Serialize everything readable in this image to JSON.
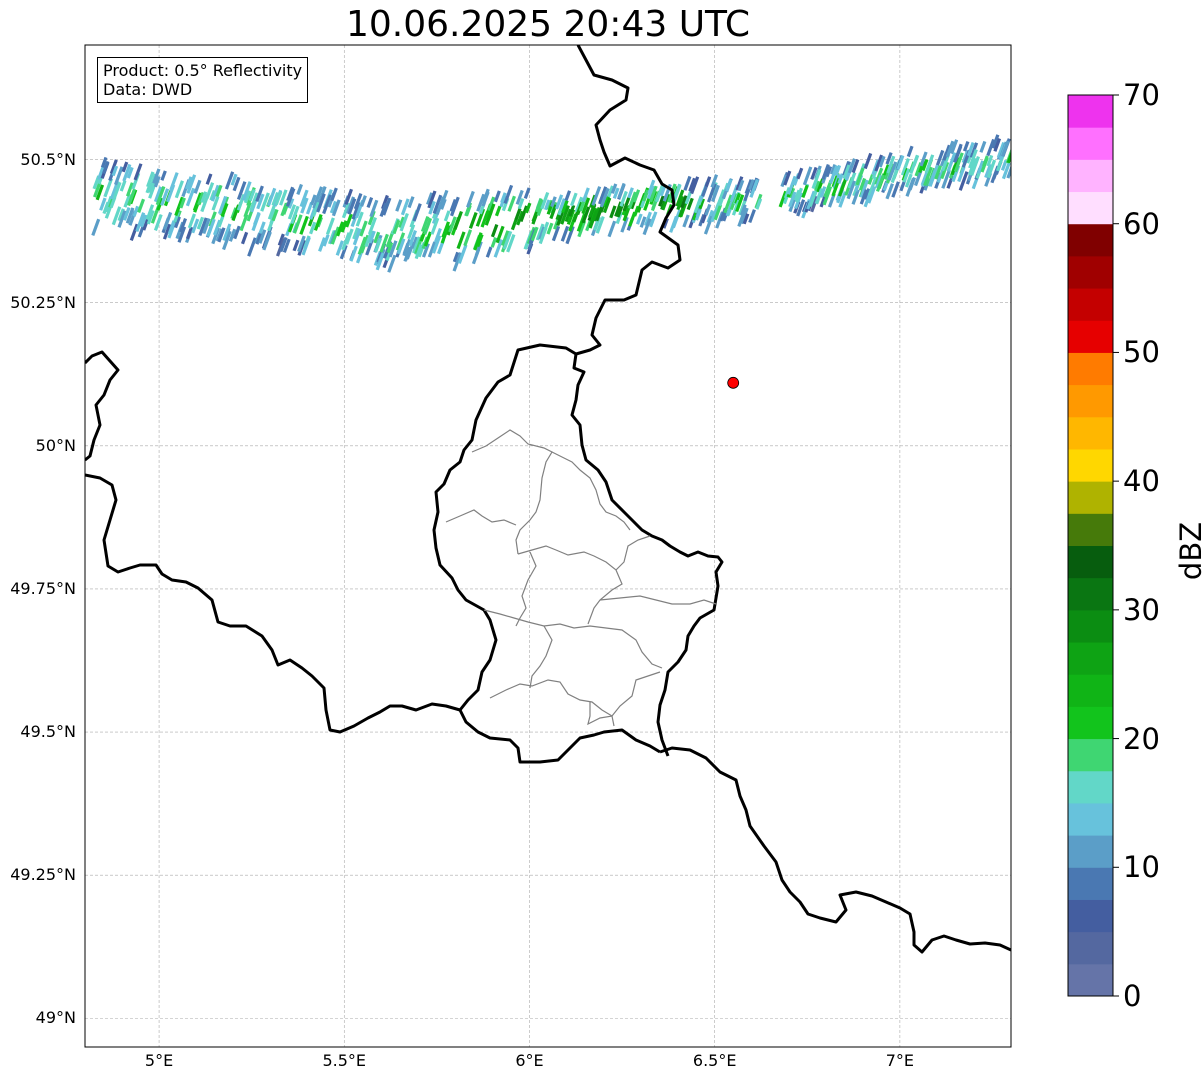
{
  "title": "10.06.2025 20:43 UTC",
  "info": {
    "product": "Product: 0.5° Reflectivity",
    "data_source": "Data: DWD"
  },
  "map": {
    "lat_range": [
      48.95,
      50.7
    ],
    "lon_range": [
      4.8,
      7.3
    ],
    "lat_ticks": [
      {
        "value": 49.0,
        "label": "49°N"
      },
      {
        "value": 49.25,
        "label": "49.25°N"
      },
      {
        "value": 49.5,
        "label": "49.5°N"
      },
      {
        "value": 49.75,
        "label": "49.75°N"
      },
      {
        "value": 50.0,
        "label": "50°N"
      },
      {
        "value": 50.25,
        "label": "50.25°N"
      },
      {
        "value": 50.5,
        "label": "50.5°N"
      }
    ],
    "lon_ticks": [
      {
        "value": 5.0,
        "label": "5°E"
      },
      {
        "value": 5.5,
        "label": "5.5°E"
      },
      {
        "value": 6.0,
        "label": "6°E"
      },
      {
        "value": 6.5,
        "label": "6.5°E"
      },
      {
        "value": 7.0,
        "label": "7°E"
      }
    ],
    "grid": true,
    "marker": {
      "lat": 50.11,
      "lon": 6.55,
      "color": "#ff0000"
    },
    "radar_band_centerline": [
      [
        4.82,
        50.44
      ],
      [
        5.0,
        50.42
      ],
      [
        5.2,
        50.41
      ],
      [
        5.4,
        50.39
      ],
      [
        5.6,
        50.37
      ],
      [
        5.8,
        50.375
      ],
      [
        6.0,
        50.39
      ],
      [
        6.2,
        50.41
      ],
      [
        6.4,
        50.42
      ],
      [
        6.6,
        50.425
      ],
      [
        6.8,
        50.45
      ],
      [
        7.0,
        50.475
      ],
      [
        7.3,
        50.5
      ]
    ]
  },
  "colorbar": {
    "label": "dBZ",
    "min": 0,
    "max": 70,
    "step": 2.5,
    "ticks": [
      {
        "value": 0,
        "label": "0"
      },
      {
        "value": 10,
        "label": "10"
      },
      {
        "value": 20,
        "label": "20"
      },
      {
        "value": 30,
        "label": "30"
      },
      {
        "value": 40,
        "label": "40"
      },
      {
        "value": 50,
        "label": "50"
      },
      {
        "value": 60,
        "label": "60"
      },
      {
        "value": 70,
        "label": "70"
      }
    ],
    "colors": [
      "#6574a8",
      "#5468a0",
      "#445ea0",
      "#4a78b2",
      "#5b9ec8",
      "#67c2dc",
      "#62d7c8",
      "#3fd672",
      "#12c41c",
      "#10b416",
      "#0ea314",
      "#0b8d12",
      "#0a7612",
      "#075d0e",
      "#467a0a",
      "#afb300",
      "#ffd700",
      "#ffb700",
      "#ff9900",
      "#ff7b00",
      "#e60000",
      "#c40000",
      "#a00000",
      "#800000",
      "#ffdeff",
      "#ffb3ff",
      "#ff70ff",
      "#ee33ee"
    ]
  }
}
